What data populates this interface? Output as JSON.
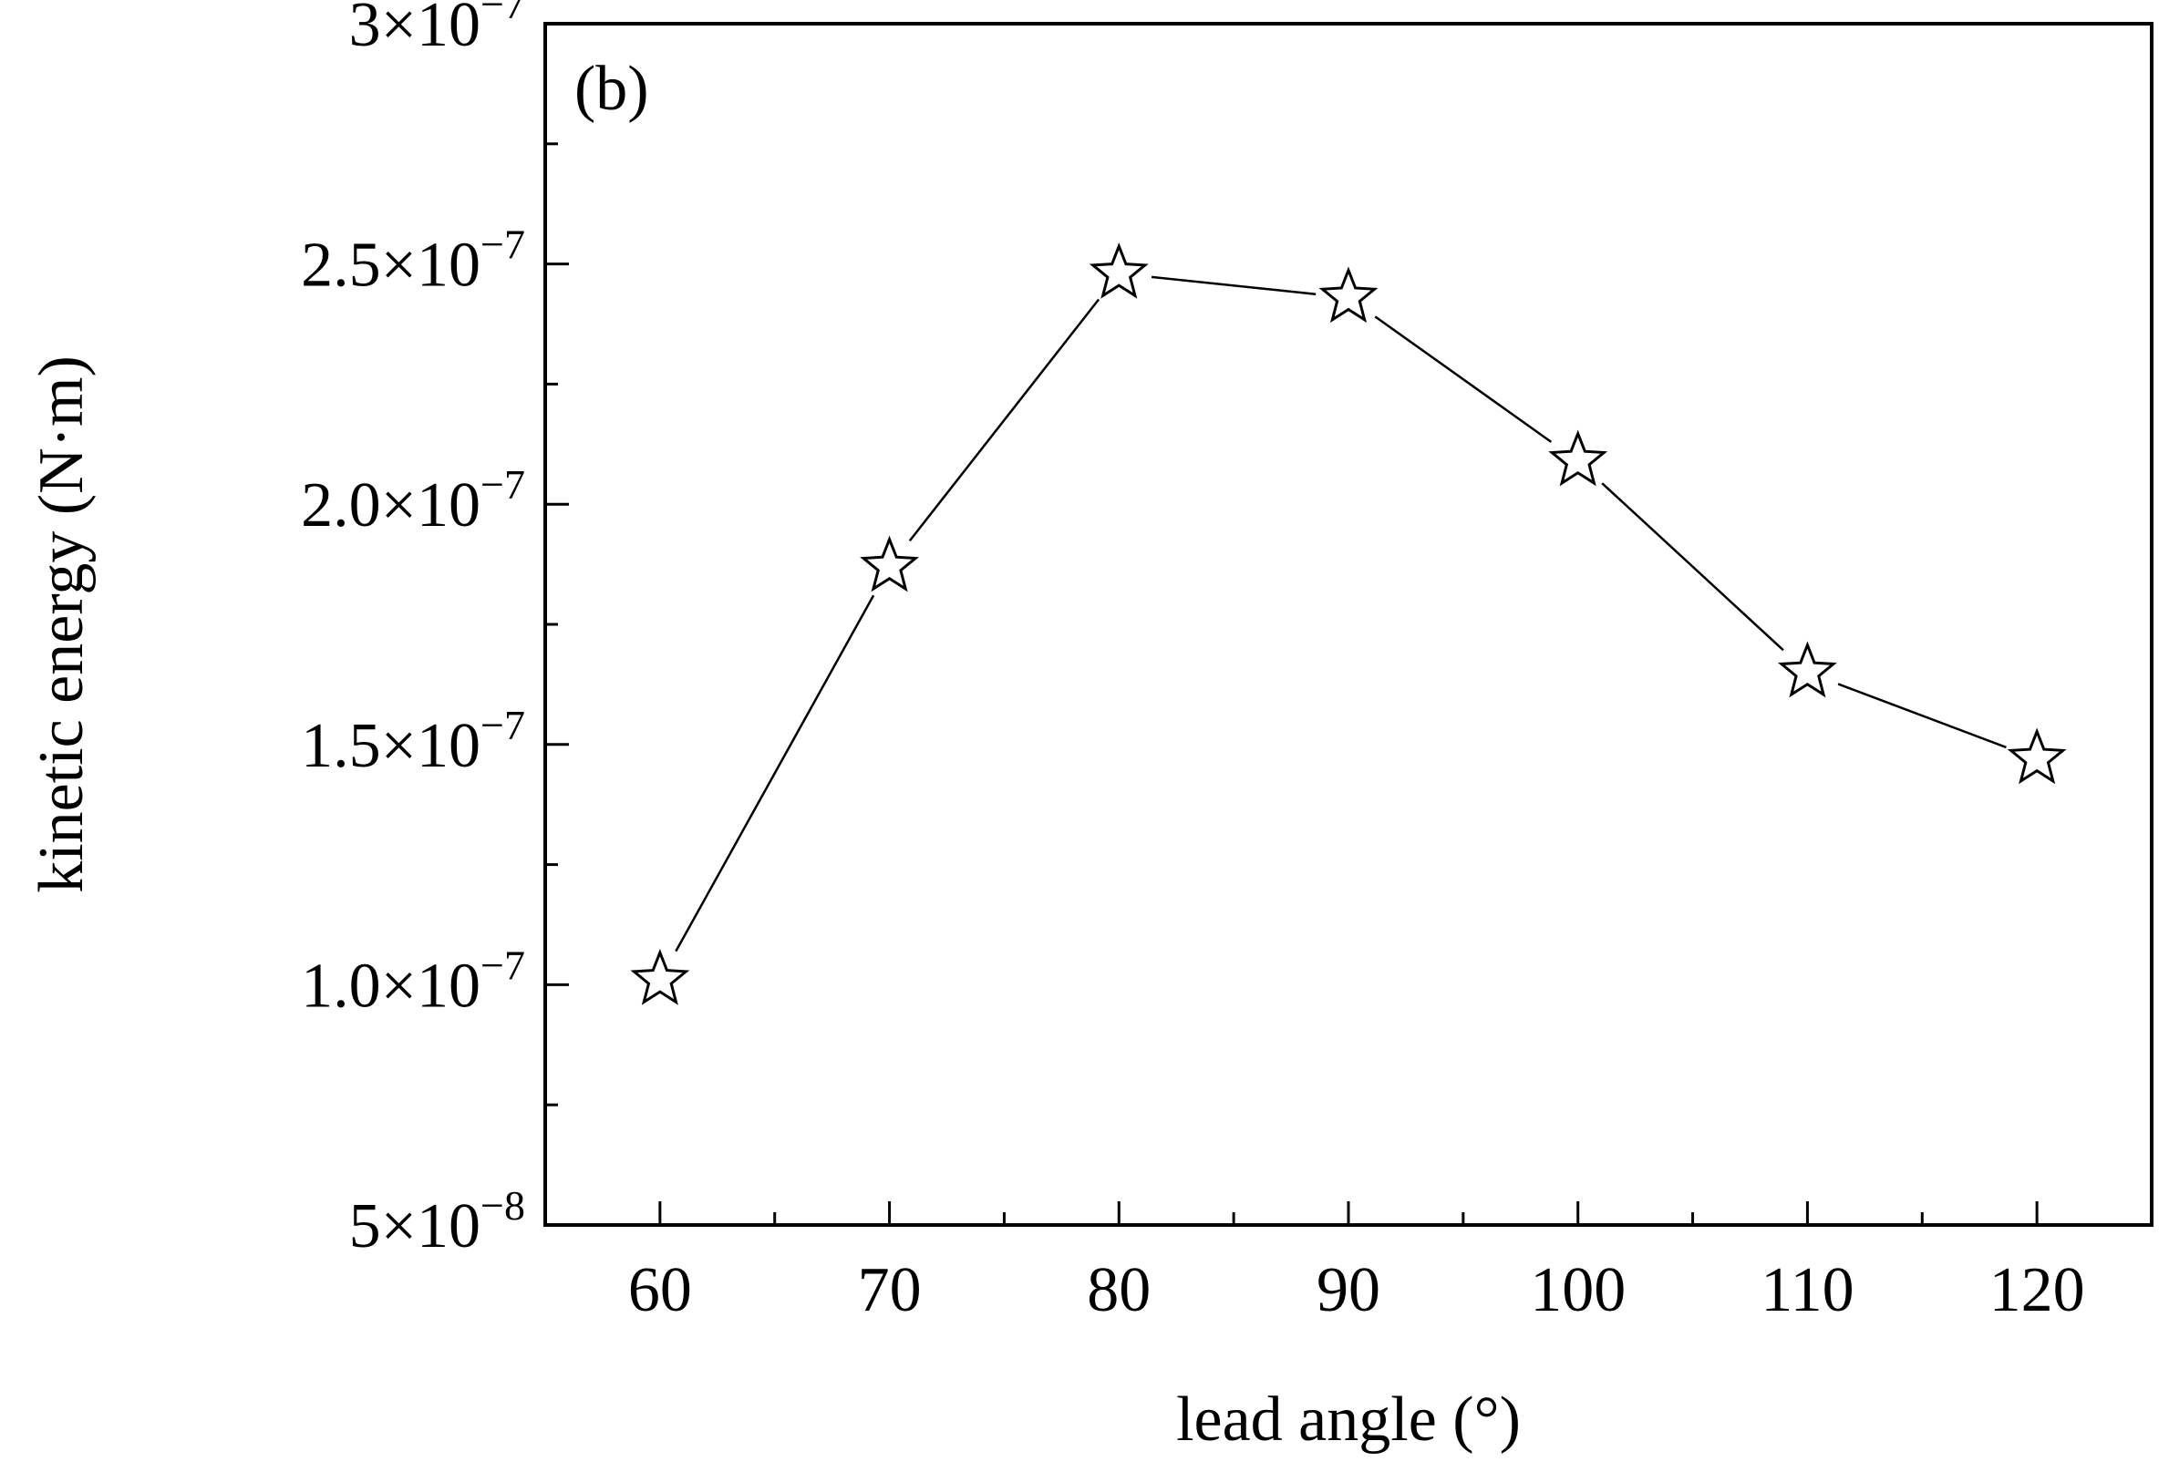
{
  "chart_data": {
    "type": "line",
    "panel_label": "(b)",
    "xlabel": "lead angle (°)",
    "ylabel": "kinetic energy (N·m)",
    "xlim": [
      55,
      125
    ],
    "ylim": [
      5e-08,
      3e-07
    ],
    "x_ticks": [
      60,
      70,
      80,
      90,
      100,
      110,
      120
    ],
    "x_tick_labels": [
      "60",
      "70",
      "80",
      "90",
      "100",
      "110",
      "120"
    ],
    "y_ticks": [
      {
        "value": 5e-08,
        "mantissa": "5",
        "exponent": "−8"
      },
      {
        "value": 1e-07,
        "mantissa": "1.0",
        "exponent": "−7"
      },
      {
        "value": 1.5e-07,
        "mantissa": "1.5",
        "exponent": "−7"
      },
      {
        "value": 2e-07,
        "mantissa": "2.0",
        "exponent": "−7"
      },
      {
        "value": 2.5e-07,
        "mantissa": "2.5",
        "exponent": "−7"
      },
      {
        "value": 3e-07,
        "mantissa": "3",
        "exponent": "−7"
      }
    ],
    "tick_base": "10",
    "times_symbol": "×",
    "marker": "star-outline",
    "line_color": "#000000",
    "series": [
      {
        "x": [
          60,
          70,
          80,
          90,
          100,
          110,
          120
        ],
        "y": [
          1.01e-07,
          1.87e-07,
          2.48e-07,
          2.43e-07,
          2.09e-07,
          1.65e-07,
          1.47e-07
        ]
      }
    ],
    "grid": false
  }
}
